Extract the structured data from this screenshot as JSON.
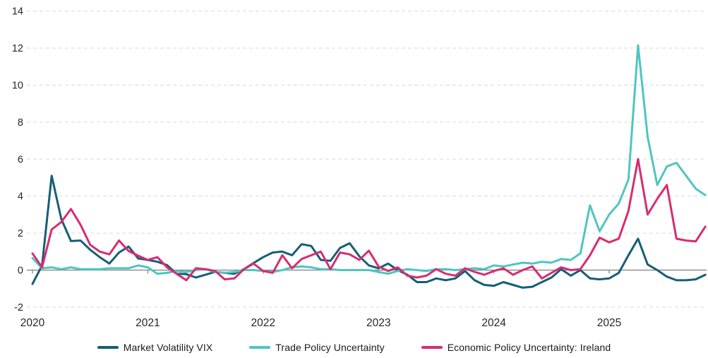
{
  "chart_data": {
    "type": "line",
    "title": "",
    "xlabel": "",
    "ylabel": "",
    "frequency": "monthly",
    "x_start": "2020-01",
    "x_end": "2025-11",
    "x_tick_labels": [
      "2020",
      "2021",
      "2022",
      "2023",
      "2024",
      "2025"
    ],
    "y_ticks": [
      -2,
      0,
      2,
      4,
      6,
      8,
      10,
      12,
      14
    ],
    "ylim": [
      -2,
      14.3
    ],
    "grid": "horizontal-dashed",
    "legend_position": "bottom-center",
    "colors": {
      "grid": "#d9d9d9",
      "zero_axis": "#7f7f7f",
      "tick_text": "#262626",
      "background": "#ffffff"
    },
    "series": [
      {
        "name": "Market Volatility VIX",
        "color": "#155e78",
        "values": [
          -0.75,
          0.25,
          5.1,
          2.75,
          1.57,
          1.6,
          1.1,
          0.7,
          0.35,
          0.95,
          1.27,
          0.63,
          0.55,
          0.45,
          0.27,
          -0.2,
          -0.22,
          -0.4,
          -0.25,
          -0.1,
          -0.15,
          -0.2,
          0.05,
          0.38,
          0.7,
          0.95,
          1.0,
          0.8,
          1.4,
          1.3,
          0.55,
          0.5,
          1.2,
          1.45,
          0.75,
          0.25,
          0.1,
          0.35,
          0.0,
          -0.25,
          -0.65,
          -0.65,
          -0.45,
          -0.55,
          -0.45,
          -0.05,
          -0.55,
          -0.8,
          -0.85,
          -0.65,
          -0.8,
          -0.95,
          -0.9,
          -0.65,
          -0.4,
          0.05,
          -0.3,
          0.0,
          -0.45,
          -0.5,
          -0.45,
          -0.15,
          0.8,
          1.7,
          0.3,
          0.0,
          -0.35,
          -0.55,
          -0.55,
          -0.5,
          -0.25
        ]
      },
      {
        "name": "Trade Policy Uncertainty",
        "color": "#4fc5c1",
        "values": [
          0.65,
          0.1,
          0.15,
          0.05,
          0.15,
          0.05,
          0.05,
          0.05,
          0.1,
          0.1,
          0.1,
          0.25,
          0.15,
          -0.2,
          -0.15,
          -0.05,
          -0.1,
          0.0,
          0.05,
          -0.1,
          -0.15,
          -0.1,
          0.0,
          0.0,
          -0.05,
          -0.1,
          0.0,
          0.15,
          0.2,
          0.15,
          0.05,
          0.05,
          0.0,
          0.0,
          0.0,
          0.0,
          -0.1,
          -0.2,
          -0.05,
          0.05,
          0.0,
          -0.05,
          0.05,
          0.05,
          0.0,
          0.05,
          0.1,
          0.05,
          0.25,
          0.2,
          0.3,
          0.4,
          0.35,
          0.45,
          0.4,
          0.6,
          0.55,
          0.9,
          3.5,
          2.1,
          3.0,
          3.6,
          4.9,
          12.15,
          7.2,
          4.6,
          5.6,
          5.8,
          5.1,
          4.4,
          4.05
        ]
      },
      {
        "name": "Economic Policy Uncertainty: Ireland",
        "color": "#d62d71",
        "values": [
          0.9,
          0.15,
          2.2,
          2.6,
          3.3,
          2.45,
          1.37,
          1.0,
          0.85,
          1.6,
          1.03,
          0.78,
          0.55,
          0.7,
          0.15,
          -0.2,
          -0.55,
          0.1,
          0.05,
          -0.05,
          -0.5,
          -0.45,
          0.05,
          0.35,
          -0.05,
          -0.15,
          0.8,
          0.1,
          0.6,
          0.8,
          1.0,
          0.05,
          0.95,
          0.85,
          0.55,
          1.05,
          0.2,
          -0.05,
          0.15,
          -0.3,
          -0.4,
          -0.3,
          0.05,
          -0.2,
          -0.3,
          0.1,
          -0.1,
          -0.25,
          -0.05,
          0.1,
          -0.25,
          0.0,
          0.2,
          -0.45,
          -0.15,
          0.15,
          0.0,
          0.05,
          0.8,
          1.75,
          1.5,
          1.7,
          3.2,
          6.0,
          3.0,
          3.85,
          4.6,
          1.7,
          1.6,
          1.55,
          2.35
        ]
      }
    ]
  }
}
